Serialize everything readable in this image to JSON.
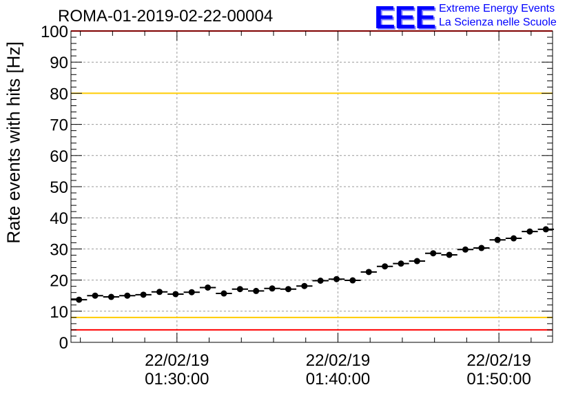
{
  "title": "ROMA-01-2019-02-22-00004",
  "logo": {
    "mark": "EEE",
    "line1": "Extreme Energy Events",
    "line2": "La Scienza nelle Scuole"
  },
  "chart_data": {
    "type": "scatter",
    "title": "ROMA-01-2019-02-22-00004",
    "ylabel": "Rate events with hits [Hz]",
    "xlabel": "",
    "ylim": [
      0,
      100
    ],
    "yticks": [
      0,
      10,
      20,
      30,
      40,
      50,
      60,
      70,
      80,
      90,
      100
    ],
    "xlim": [
      "01:23:25",
      "01:53:20"
    ],
    "xticks": [
      {
        "date": "22/02/19",
        "time": "01:30:00"
      },
      {
        "date": "22/02/19",
        "time": "01:40:00"
      },
      {
        "date": "22/02/19",
        "time": "01:50:00"
      }
    ],
    "grid": true,
    "threshold_lines": [
      {
        "y": 80,
        "color": "#ffcc00"
      },
      {
        "y": 8,
        "color": "#ffcc00"
      },
      {
        "y": 100,
        "color": "#ff0000"
      },
      {
        "y": 4,
        "color": "#ff0000"
      }
    ],
    "series": [
      {
        "marker_color": "#000000",
        "x": [
          "01:23:55",
          "01:24:55",
          "01:25:55",
          "01:26:55",
          "01:27:55",
          "01:28:55",
          "01:29:55",
          "01:30:55",
          "01:31:55",
          "01:32:55",
          "01:33:55",
          "01:34:55",
          "01:35:55",
          "01:36:55",
          "01:37:55",
          "01:38:55",
          "01:39:55",
          "01:40:55",
          "01:41:55",
          "01:42:55",
          "01:43:55",
          "01:44:55",
          "01:45:55",
          "01:46:55",
          "01:47:55",
          "01:48:55",
          "01:49:55",
          "01:50:55",
          "01:51:55",
          "01:52:55"
        ],
        "y": [
          13.7,
          15.0,
          14.6,
          15.0,
          15.3,
          16.2,
          15.5,
          16.1,
          17.6,
          15.7,
          17.1,
          16.5,
          17.3,
          17.1,
          18.1,
          19.8,
          20.3,
          19.9,
          22.6,
          24.4,
          25.3,
          26.1,
          28.6,
          28.1,
          29.8,
          30.3,
          32.9,
          33.4,
          35.6,
          36.3
        ]
      }
    ]
  }
}
